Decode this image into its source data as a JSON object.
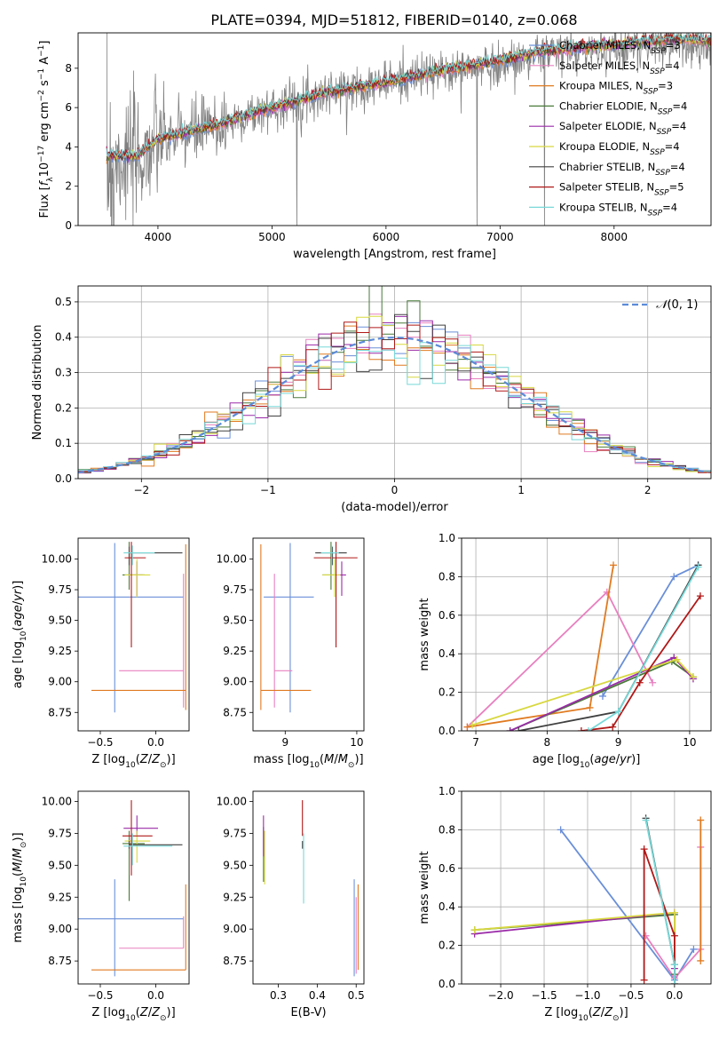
{
  "figure": {
    "title": "PLATE=0394, MJD=51812, FIBERID=0140, z=0.068"
  },
  "colors": {
    "Chabrier MILES": "#6a8fd8",
    "Salpeter MILES": "#e880c0",
    "Kroupa MILES": "#e07a20",
    "Chabrier ELODIE": "#4a7a3a",
    "Salpeter ELODIE": "#9a2aa8",
    "Kroupa ELODIE": "#d8d840",
    "Chabrier STELIB": "#404040",
    "Salpeter STELIB": "#b01818",
    "Kroupa STELIB": "#78d8d8",
    "data": "#808080",
    "normal": "#5b8bd8"
  },
  "chart_data": [
    {
      "id": "spectrum",
      "type": "line",
      "xlabel": "wavelength [Angstrom, rest frame]",
      "ylabel": "Flux [f_λ10^-17 erg cm^-2 s^-1 A^-1]",
      "xlim": [
        3300,
        8850
      ],
      "ylim": [
        0,
        9.8
      ],
      "xticks": [
        4000,
        5000,
        6000,
        7000,
        8000
      ],
      "yticks": [
        0,
        2,
        4,
        6,
        8
      ],
      "grid": false,
      "legend_position": "top-right",
      "data_series": "Observed spectrum (gray), approx. rising from ~3.5 at 3550 A to ~9.2 at 8850 A",
      "data_points": [
        [
          3550,
          3.5
        ],
        [
          3800,
          3.2
        ],
        [
          4000,
          4.3
        ],
        [
          4500,
          5.0
        ],
        [
          5000,
          6.0
        ],
        [
          5500,
          6.8
        ],
        [
          6000,
          7.3
        ],
        [
          6500,
          7.8
        ],
        [
          7000,
          8.2
        ],
        [
          7400,
          8.8
        ],
        [
          8000,
          9.0
        ],
        [
          8500,
          9.3
        ],
        [
          8850,
          9.2
        ]
      ],
      "model_points": [
        [
          3550,
          3.6
        ],
        [
          3800,
          3.5
        ],
        [
          4000,
          4.4
        ],
        [
          4500,
          5.1
        ],
        [
          5000,
          6.0
        ],
        [
          5500,
          6.8
        ],
        [
          6000,
          7.3
        ],
        [
          6500,
          7.9
        ],
        [
          7000,
          8.4
        ],
        [
          7400,
          8.9
        ],
        [
          8000,
          9.2
        ],
        [
          8500,
          9.5
        ],
        [
          8850,
          9.4
        ]
      ],
      "series": [
        {
          "name": "Chabrier MILES",
          "nssp": "3"
        },
        {
          "name": "Salpeter MILES",
          "nssp": "4"
        },
        {
          "name": "Kroupa MILES",
          "nssp": "3"
        },
        {
          "name": "Chabrier ELODIE",
          "nssp": "4"
        },
        {
          "name": "Salpeter ELODIE",
          "nssp": "4"
        },
        {
          "name": "Kroupa ELODIE",
          "nssp": "4"
        },
        {
          "name": "Chabrier STELIB",
          "nssp": "4"
        },
        {
          "name": "Salpeter STELIB",
          "nssp": "5"
        },
        {
          "name": "Kroupa STELIB",
          "nssp": "4"
        }
      ]
    },
    {
      "id": "residuals",
      "type": "line",
      "xlabel": "(data-model)/error",
      "ylabel": "Normed distribution",
      "xlim": [
        -2.5,
        2.5
      ],
      "ylim": [
        0,
        0.545
      ],
      "xticks": [
        -2,
        -1,
        0,
        1,
        2
      ],
      "yticks": [
        0.0,
        0.1,
        0.2,
        0.3,
        0.4,
        0.5
      ],
      "grid": true,
      "legend": "N(0,1)",
      "legend_position": "top-right",
      "bin_width": 0.1
    },
    {
      "id": "age_vs_Z",
      "type": "scatter",
      "xlabel": "Z [log10(Z/Z⊙)]",
      "ylabel": "age  [log10(age/yr)]",
      "xlim": [
        -0.7,
        0.3
      ],
      "ylim": [
        8.6,
        10.17
      ],
      "xticks": [
        -0.5,
        0.0
      ],
      "yticks": [
        8.75,
        9.0,
        9.25,
        9.5,
        9.75,
        10.0
      ],
      "points": [
        {
          "series": "Chabrier MILES",
          "x": -0.37,
          "y": 9.69,
          "xerr": [
            0.37,
            0.62
          ],
          "yerr": [
            0.94,
            0.44
          ]
        },
        {
          "series": "Salpeter MILES",
          "x": 0.25,
          "y": 9.09,
          "xerr": [
            0.58,
            0.0
          ],
          "yerr": [
            0.3,
            0.79
          ]
        },
        {
          "series": "Kroupa MILES",
          "x": 0.27,
          "y": 8.93,
          "xerr": [
            0.85,
            0.0
          ],
          "yerr": [
            0.16,
            1.19
          ]
        },
        {
          "series": "Chabrier ELODIE",
          "x": -0.24,
          "y": 9.87,
          "xerr": [
            0.06,
            0.14
          ],
          "yerr": [
            0.12,
            0.27
          ]
        },
        {
          "series": "Salpeter ELODIE",
          "x": -0.17,
          "y": 9.87,
          "xerr": [
            0.04,
            0.05
          ],
          "yerr": [
            0.17,
            0.11
          ]
        },
        {
          "series": "Kroupa ELODIE",
          "x": -0.17,
          "y": 9.87,
          "xerr": [
            0.11,
            0.12
          ],
          "yerr": [
            0.18,
            0.13
          ]
        },
        {
          "series": "Chabrier STELIB",
          "x": -0.24,
          "y": 10.05,
          "xerr": [
            0.0,
            0.48
          ],
          "yerr": [
            0.1,
            0.05
          ]
        },
        {
          "series": "Salpeter STELIB",
          "x": -0.22,
          "y": 10.01,
          "xerr": [
            0.06,
            0.13
          ],
          "yerr": [
            0.73,
            0.13
          ]
        },
        {
          "series": "Kroupa STELIB",
          "x": -0.21,
          "y": 10.05,
          "xerr": [
            0.08,
            0.2
          ],
          "yerr": [
            0.1,
            0.06
          ]
        }
      ]
    },
    {
      "id": "age_vs_mass",
      "type": "scatter",
      "xlabel": "mass [log10(M/M⊙)]",
      "ylabel": "",
      "xlim": [
        8.55,
        10.1
      ],
      "ylim": [
        8.6,
        10.17
      ],
      "xticks": [
        9,
        10
      ],
      "yticks": [
        8.75,
        9.0,
        9.25,
        9.5,
        9.75,
        10.0
      ],
      "points": [
        {
          "series": "Chabrier MILES",
          "x": 9.07,
          "y": 9.69,
          "xerr": [
            0.37,
            0.33
          ],
          "yerr": [
            0.94,
            0.44
          ]
        },
        {
          "series": "Salpeter MILES",
          "x": 8.85,
          "y": 9.09,
          "xerr": [
            0.0,
            0.25
          ],
          "yerr": [
            0.3,
            0.79
          ]
        },
        {
          "series": "Kroupa MILES",
          "x": 8.66,
          "y": 8.93,
          "xerr": [
            0.0,
            0.7
          ],
          "yerr": [
            0.16,
            1.19
          ]
        },
        {
          "series": "Chabrier ELODIE",
          "x": 9.64,
          "y": 9.87,
          "xerr": [
            0.12,
            0.08
          ],
          "yerr": [
            0.12,
            0.27
          ]
        },
        {
          "series": "Salpeter ELODIE",
          "x": 9.79,
          "y": 9.87,
          "xerr": [
            0.05,
            0.06
          ],
          "yerr": [
            0.17,
            0.11
          ]
        },
        {
          "series": "Kroupa ELODIE",
          "x": 9.69,
          "y": 9.87,
          "xerr": [
            0.17,
            0.08
          ],
          "yerr": [
            0.18,
            0.13
          ]
        },
        {
          "series": "Chabrier STELIB",
          "x": 9.66,
          "y": 10.05,
          "xerr": [
            0.24,
            0.2
          ],
          "yerr": [
            0.1,
            0.05
          ]
        },
        {
          "series": "Salpeter STELIB",
          "x": 9.71,
          "y": 10.01,
          "xerr": [
            0.31,
            0.3
          ],
          "yerr": [
            0.73,
            0.13
          ]
        },
        {
          "series": "Kroupa STELIB",
          "x": 9.65,
          "y": 10.05,
          "xerr": [
            0.15,
            0.1
          ],
          "yerr": [
            0.1,
            0.06
          ]
        }
      ]
    },
    {
      "id": "mass_weight_vs_age",
      "type": "line",
      "xlabel": "age  [log10(age/yr)]",
      "ylabel": "mass weight",
      "xlim": [
        6.8,
        10.3
      ],
      "ylim": [
        0.0,
        1.0
      ],
      "xticks": [
        7,
        8,
        9,
        10
      ],
      "yticks": [
        0.0,
        0.2,
        0.4,
        0.6,
        0.8,
        1.0
      ],
      "grid": true,
      "series": [
        {
          "name": "Chabrier MILES",
          "x": [
            8.78,
            9.78,
            10.12
          ],
          "y": [
            0.18,
            0.8,
            0.86
          ]
        },
        {
          "name": "Salpeter MILES",
          "x": [
            6.88,
            8.84,
            9.48
          ],
          "y": [
            0.02,
            0.72,
            0.25
          ]
        },
        {
          "name": "Kroupa MILES",
          "x": [
            6.88,
            8.6,
            8.93
          ],
          "y": [
            0.02,
            0.12,
            0.86
          ]
        },
        {
          "name": "Chabrier ELODIE",
          "x": [
            7.48,
            9.75,
            10.05
          ],
          "y": [
            0.0,
            0.36,
            0.28
          ]
        },
        {
          "name": "Salpeter ELODIE",
          "x": [
            7.48,
            9.78,
            10.05
          ],
          "y": [
            0.0,
            0.38,
            0.27
          ]
        },
        {
          "name": "Kroupa ELODIE",
          "x": [
            6.95,
            9.82,
            10.05
          ],
          "y": [
            0.03,
            0.37,
            0.28
          ]
        },
        {
          "name": "Chabrier STELIB",
          "x": [
            7.6,
            9.0,
            10.12
          ],
          "y": [
            0.0,
            0.1,
            0.86
          ]
        },
        {
          "name": "Salpeter STELIB",
          "x": [
            8.48,
            8.92,
            9.3,
            10.15
          ],
          "y": [
            0.0,
            0.02,
            0.25,
            0.7
          ]
        },
        {
          "name": "Kroupa STELIB",
          "x": [
            8.58,
            9.0,
            10.12
          ],
          "y": [
            0.0,
            0.1,
            0.85
          ]
        }
      ]
    },
    {
      "id": "mass_vs_Z",
      "type": "scatter",
      "xlabel": "Z [log10(Z/Z⊙)]",
      "ylabel": "mass [log10(M/M⊙)]",
      "xlim": [
        -0.7,
        0.3
      ],
      "ylim": [
        8.57,
        10.08
      ],
      "xticks": [
        -0.5,
        0.0
      ],
      "yticks": [
        8.75,
        9.0,
        9.25,
        9.5,
        9.75,
        10.0
      ],
      "points": [
        {
          "series": "Chabrier MILES",
          "x": -0.37,
          "y": 9.08,
          "xerr": [
            0.37,
            0.62
          ],
          "yerr": [
            0.45,
            0.31
          ]
        },
        {
          "series": "Salpeter MILES",
          "x": 0.25,
          "y": 8.85,
          "xerr": [
            0.58,
            0.0
          ],
          "yerr": [
            0.0,
            0.25
          ]
        },
        {
          "series": "Kroupa MILES",
          "x": 0.27,
          "y": 8.68,
          "xerr": [
            0.85,
            0.0
          ],
          "yerr": [
            0.0,
            0.67
          ]
        },
        {
          "series": "Chabrier ELODIE",
          "x": -0.24,
          "y": 9.67,
          "xerr": [
            0.06,
            0.14
          ],
          "yerr": [
            0.45,
            0.1
          ]
        },
        {
          "series": "Salpeter ELODIE",
          "x": -0.17,
          "y": 9.79,
          "xerr": [
            0.12,
            0.19
          ],
          "yerr": [
            0.05,
            0.1
          ]
        },
        {
          "series": "Kroupa ELODIE",
          "x": -0.17,
          "y": 9.69,
          "xerr": [
            0.11,
            0.12
          ],
          "yerr": [
            0.17,
            0.08
          ]
        },
        {
          "series": "Chabrier STELIB",
          "x": -0.24,
          "y": 9.66,
          "xerr": [
            0.0,
            0.48
          ],
          "yerr": [
            0.03,
            0.03
          ]
        },
        {
          "series": "Salpeter STELIB",
          "x": -0.22,
          "y": 9.73,
          "xerr": [
            0.08,
            0.19
          ],
          "yerr": [
            0.31,
            0.28
          ]
        },
        {
          "series": "Kroupa STELIB",
          "x": -0.21,
          "y": 9.65,
          "xerr": [
            0.08,
            0.36
          ],
          "yerr": [
            0.15,
            0.1
          ]
        }
      ]
    },
    {
      "id": "mass_vs_ebv",
      "type": "scatter",
      "xlabel": "E(B-V)",
      "ylabel": "",
      "xlim": [
        0.235,
        0.52
      ],
      "ylim": [
        8.57,
        10.08
      ],
      "xticks": [
        0.3,
        0.4,
        0.5
      ],
      "yticks": [
        8.75,
        9.0,
        9.25,
        9.5,
        9.75,
        10.0
      ],
      "points": [
        {
          "series": "Chabrier MILES",
          "x": 0.495,
          "y": 9.08,
          "xerr": [
            0,
            0
          ],
          "yerr": [
            0.45,
            0.31
          ]
        },
        {
          "series": "Salpeter MILES",
          "x": 0.5,
          "y": 8.85,
          "xerr": [
            0,
            0
          ],
          "yerr": [
            0.2,
            0.4
          ]
        },
        {
          "series": "Kroupa MILES",
          "x": 0.505,
          "y": 8.68,
          "xerr": [
            0,
            0
          ],
          "yerr": [
            0.0,
            0.67
          ]
        },
        {
          "series": "Chabrier ELODIE",
          "x": 0.262,
          "y": 9.67,
          "xerr": [
            0,
            0
          ],
          "yerr": [
            0.3,
            0.13
          ]
        },
        {
          "series": "Salpeter ELODIE",
          "x": 0.262,
          "y": 9.79,
          "xerr": [
            0,
            0
          ],
          "yerr": [
            0.22,
            0.1
          ]
        },
        {
          "series": "Kroupa ELODIE",
          "x": 0.265,
          "y": 9.69,
          "xerr": [
            0,
            0
          ],
          "yerr": [
            0.34,
            0.08
          ]
        },
        {
          "series": "Chabrier STELIB",
          "x": 0.362,
          "y": 9.66,
          "xerr": [
            0,
            0
          ],
          "yerr": [
            0.03,
            0.03
          ]
        },
        {
          "series": "Salpeter STELIB",
          "x": 0.362,
          "y": 9.73,
          "xerr": [
            0,
            0
          ],
          "yerr": [
            0.0,
            0.28
          ]
        },
        {
          "series": "Kroupa STELIB",
          "x": 0.365,
          "y": 9.65,
          "xerr": [
            0,
            0
          ],
          "yerr": [
            0.45,
            0.1
          ]
        }
      ]
    },
    {
      "id": "mass_weight_vs_Z",
      "type": "line",
      "xlabel": "Z [log10(Z/Z⊙)]",
      "ylabel": "mass weight",
      "xlim": [
        -2.45,
        0.42
      ],
      "ylim": [
        0.0,
        1.0
      ],
      "xticks": [
        -2.0,
        -1.5,
        -1.0,
        -0.5,
        0.0
      ],
      "yticks": [
        0.0,
        0.2,
        0.4,
        0.6,
        0.8,
        1.0
      ],
      "grid": true,
      "series": [
        {
          "name": "Chabrier MILES",
          "x": [
            -1.31,
            0.0,
            0.22
          ],
          "y": [
            0.8,
            0.02,
            0.18
          ]
        },
        {
          "name": "Salpeter MILES",
          "x": [
            -0.33,
            0.0,
            0.3,
            0.3
          ],
          "y": [
            0.25,
            0.03,
            0.18,
            0.71
          ]
        },
        {
          "name": "Kroupa MILES",
          "x": [
            0.3,
            0.3
          ],
          "y": [
            0.12,
            0.85
          ]
        },
        {
          "name": "Chabrier ELODIE",
          "x": [
            -2.3,
            0.0,
            0.0
          ],
          "y": [
            0.28,
            0.36,
            0.05
          ]
        },
        {
          "name": "Salpeter ELODIE",
          "x": [
            -2.3,
            0.0,
            0.0
          ],
          "y": [
            0.26,
            0.37,
            0.08
          ]
        },
        {
          "name": "Kroupa ELODIE",
          "x": [
            -2.3,
            0.0,
            0.0
          ],
          "y": [
            0.28,
            0.37,
            0.1
          ]
        },
        {
          "name": "Chabrier STELIB",
          "x": [
            -0.33,
            0.0,
            0.0
          ],
          "y": [
            0.86,
            0.1,
            0.0
          ]
        },
        {
          "name": "Salpeter STELIB",
          "x": [
            -0.35,
            -0.35,
            0.0,
            0.0
          ],
          "y": [
            0.02,
            0.7,
            0.25,
            0.0
          ]
        },
        {
          "name": "Kroupa STELIB",
          "x": [
            -0.33,
            0.0,
            0.0
          ],
          "y": [
            0.85,
            0.1,
            0.0
          ]
        }
      ]
    }
  ]
}
